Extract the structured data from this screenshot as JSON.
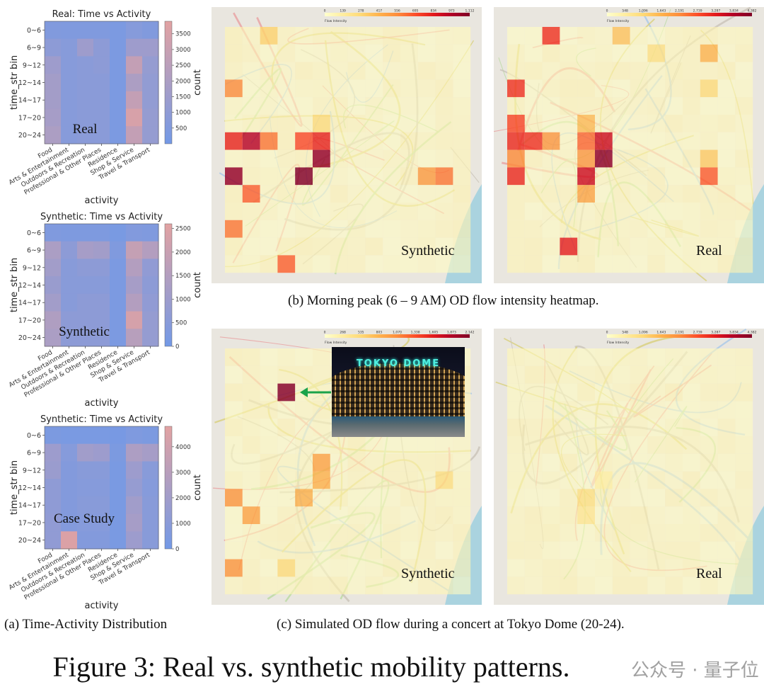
{
  "colors": {
    "heat_low": "#7399e6",
    "heat_high": "#e2a2a2",
    "map_base": "#fdf3c4",
    "accent_arrow": "#1aa34a"
  },
  "left_panels": [
    {
      "title": "Real: Time vs Activity",
      "overlay": "Real",
      "ylabel": "time_str bin",
      "xlabel": "activity",
      "cbar_label": "count",
      "vmin": 0,
      "vmax": 3900,
      "cbar_ticks": [
        500,
        1000,
        1500,
        2000,
        2500,
        3000,
        3500
      ]
    },
    {
      "title": "Synthetic: Time vs Activity",
      "overlay": "Synthetic",
      "ylabel": "time_str bin",
      "xlabel": "activity",
      "cbar_label": "count",
      "vmin": 0,
      "vmax": 2600,
      "cbar_ticks": [
        0,
        500,
        1000,
        1500,
        2000,
        2500
      ]
    },
    {
      "title": "Synthetic: Time vs Activity",
      "overlay": "Case Study",
      "ylabel": "time_str bin",
      "xlabel": "activity",
      "cbar_label": "count",
      "vmin": 0,
      "vmax": 4800,
      "cbar_ticks": [
        0,
        1000,
        2000,
        3000,
        4000
      ]
    }
  ],
  "chart_data": [
    {
      "type": "heatmap",
      "title": "Real: Time vs Activity",
      "xlabel": "activity",
      "ylabel": "time_str bin",
      "categories": [
        "Food",
        "Arts & Entertainment",
        "Outdoors & Recreation",
        "Professional & Other Places",
        "Residence",
        "Shop & Service",
        "Travel & Transport"
      ],
      "rows": [
        "0~6",
        "6~9",
        "9~12",
        "12~14",
        "14~17",
        "17~20",
        "20~24"
      ],
      "values": [
        [
          500,
          450,
          450,
          450,
          300,
          650,
          500
        ],
        [
          900,
          700,
          1500,
          900,
          300,
          1500,
          1500
        ],
        [
          1500,
          700,
          800,
          900,
          300,
          2800,
          1200
        ],
        [
          1700,
          700,
          800,
          800,
          300,
          2000,
          1100
        ],
        [
          1700,
          700,
          800,
          800,
          300,
          2800,
          1100
        ],
        [
          1800,
          700,
          800,
          800,
          300,
          3500,
          1200
        ],
        [
          2000,
          700,
          800,
          800,
          300,
          2800,
          1200
        ]
      ]
    },
    {
      "type": "heatmap",
      "title": "Synthetic: Time vs Activity",
      "xlabel": "activity",
      "ylabel": "time_str bin",
      "categories": [
        "Food",
        "Arts & Entertainment",
        "Outdoors & Recreation",
        "Professional & Other Places",
        "Residence",
        "Shop & Service",
        "Travel & Transport"
      ],
      "rows": [
        "0~6",
        "6~9",
        "9~12",
        "12~14",
        "14~17",
        "17~20",
        "20~24"
      ],
      "values": [
        [
          300,
          250,
          250,
          250,
          150,
          350,
          300
        ],
        [
          1300,
          600,
          1200,
          1100,
          300,
          1900,
          1500
        ],
        [
          1100,
          500,
          600,
          600,
          200,
          1500,
          700
        ],
        [
          900,
          500,
          500,
          500,
          200,
          1200,
          600
        ],
        [
          1100,
          500,
          600,
          600,
          200,
          1500,
          700
        ],
        [
          1400,
          600,
          600,
          600,
          200,
          2300,
          800
        ],
        [
          1300,
          600,
          600,
          600,
          200,
          1600,
          800
        ]
      ]
    },
    {
      "type": "heatmap",
      "title": "Synthetic: Time vs Activity",
      "xlabel": "activity",
      "ylabel": "time_str bin",
      "categories": [
        "Food",
        "Arts & Entertainment",
        "Outdoors & Recreation",
        "Professional & Other Places",
        "Residence",
        "Shop & Service",
        "Travel & Transport"
      ],
      "rows": [
        "0~6",
        "6~9",
        "9~12",
        "12~14",
        "14~17",
        "17~20",
        "20~24"
      ],
      "values": [
        [
          400,
          300,
          300,
          300,
          200,
          500,
          400
        ],
        [
          1800,
          800,
          2000,
          1800,
          400,
          2500,
          2200
        ],
        [
          1700,
          700,
          900,
          900,
          300,
          1800,
          900
        ],
        [
          1200,
          700,
          800,
          800,
          300,
          1500,
          800
        ],
        [
          1200,
          700,
          900,
          900,
          300,
          2000,
          900
        ],
        [
          1300,
          700,
          800,
          800,
          300,
          2200,
          900
        ],
        [
          1300,
          4500,
          700,
          700,
          300,
          1800,
          900
        ]
      ]
    },
    {
      "type": "heatmap",
      "title": "",
      "map": "OD flow, morning peak, synthetic",
      "legend_label": "Flow Intensity",
      "cbar_ticks": [
        "0",
        "139",
        "278",
        "417",
        "556",
        "695",
        "834",
        "973",
        "1,112"
      ],
      "vmax": 1112,
      "hot_cells": [
        [
          2,
          0,
          300
        ],
        [
          0,
          3,
          550
        ],
        [
          0,
          6,
          800
        ],
        [
          1,
          6,
          950
        ],
        [
          2,
          6,
          600
        ],
        [
          4,
          6,
          700
        ],
        [
          5,
          6,
          800
        ],
        [
          5,
          7,
          1050
        ],
        [
          0,
          8,
          1050
        ],
        [
          4,
          8,
          1100
        ],
        [
          1,
          9,
          650
        ],
        [
          0,
          11,
          600
        ],
        [
          3,
          13,
          650
        ],
        [
          11,
          8,
          500
        ],
        [
          12,
          8,
          600
        ],
        [
          5,
          5,
          250
        ]
      ]
    },
    {
      "type": "heatmap",
      "title": "",
      "map": "OD flow, morning peak, real",
      "legend_label": "Flow Intensity",
      "cbar_ticks": [
        "0",
        "548",
        "1,096",
        "1,643",
        "2,191",
        "2,739",
        "3,287",
        "3,834",
        "4,382"
      ],
      "vmax": 4382,
      "hot_cells": [
        [
          2,
          0,
          3000
        ],
        [
          6,
          0,
          1400
        ],
        [
          8,
          1,
          900
        ],
        [
          11,
          1,
          1600
        ],
        [
          0,
          3,
          3000
        ],
        [
          11,
          3,
          1000
        ],
        [
          0,
          5,
          2800
        ],
        [
          0,
          6,
          3100
        ],
        [
          1,
          6,
          3000
        ],
        [
          2,
          6,
          2000
        ],
        [
          4,
          5,
          1500
        ],
        [
          4,
          6,
          2500
        ],
        [
          5,
          6,
          3500
        ],
        [
          5,
          7,
          4200
        ],
        [
          4,
          7,
          2000
        ],
        [
          0,
          8,
          3100
        ],
        [
          4,
          8,
          3500
        ],
        [
          11,
          8,
          2600
        ],
        [
          11,
          7,
          1300
        ],
        [
          4,
          9,
          1800
        ],
        [
          3,
          12,
          3200
        ],
        [
          0,
          7,
          2200
        ]
      ]
    },
    {
      "type": "heatmap",
      "title": "",
      "map": "OD flow, concert, synthetic",
      "legend_label": "Flow Intensity",
      "cbar_ticks": [
        "0",
        "268",
        "535",
        "803",
        "1,070",
        "1,338",
        "1,605",
        "1,873",
        "2,142"
      ],
      "vmax": 2142,
      "hot_cells": [
        [
          3,
          2,
          2100
        ],
        [
          5,
          6,
          900
        ],
        [
          5,
          7,
          800
        ],
        [
          4,
          8,
          800
        ],
        [
          0,
          8,
          1000
        ],
        [
          1,
          9,
          900
        ],
        [
          12,
          7,
          450
        ],
        [
          0,
          12,
          1000
        ],
        [
          3,
          12,
          500
        ]
      ]
    },
    {
      "type": "heatmap",
      "title": "",
      "map": "OD flow, concert, real",
      "legend_label": "Flow Intensity",
      "cbar_ticks": [
        "0",
        "548",
        "1,096",
        "1,643",
        "2,191",
        "2,739",
        "3,287",
        "3,834",
        "4,382"
      ],
      "vmax": 4382,
      "hot_cells": [
        [
          4,
          8,
          900
        ],
        [
          4,
          9,
          700
        ],
        [
          5,
          7,
          500
        ]
      ]
    }
  ],
  "maps": [
    {
      "label": "Synthetic"
    },
    {
      "label": "Real"
    },
    {
      "label": "Synthetic"
    },
    {
      "label": "Real"
    }
  ],
  "photo": {
    "sign_text": "TOKYO DOME"
  },
  "captions": {
    "a": "(a) Time-Activity Distribution",
    "b": "(b) Morning peak (6 – 9 AM) OD flow intensity heatmap.",
    "c": "(c) Simulated OD flow during a concert at Tokyo Dome (20-24)."
  },
  "figure_title": "Figure 3: Real vs. synthetic mobility patterns.",
  "watermark": "公众号 · 量子位"
}
